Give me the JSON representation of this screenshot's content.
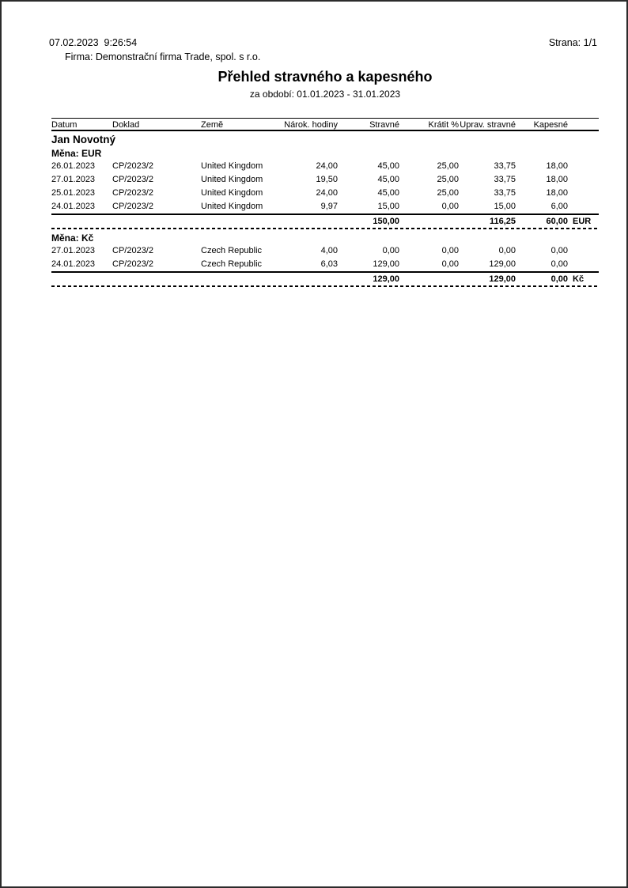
{
  "page": {
    "datetime": "07.02.2023  9:26:54",
    "page_label": "Strana: 1/1",
    "company": "Firma: Demonstrační firma Trade, spol. s r.o.",
    "title": "Přehled stravného a kapesného",
    "subtitle": "za období: 01.01.2023 - 31.01.2023"
  },
  "table": {
    "columns": [
      "Datum",
      "Doklad",
      "Země",
      "Nárok. hodiny",
      "Stravné",
      "Krátit %",
      "Uprav. stravné",
      "Kapesné"
    ],
    "employee": "Jan Novotný",
    "sections": [
      {
        "currency_label": "Měna: EUR",
        "rows": [
          {
            "datum": "26.01.2023",
            "doklad": "CP/2023/2",
            "zeme": "United Kingdom",
            "narok": "24,00",
            "stravne": "45,00",
            "kratit": "25,00",
            "uprav": "33,75",
            "kapesne": "18,00"
          },
          {
            "datum": "27.01.2023",
            "doklad": "CP/2023/2",
            "zeme": "United Kingdom",
            "narok": "19,50",
            "stravne": "45,00",
            "kratit": "25,00",
            "uprav": "33,75",
            "kapesne": "18,00"
          },
          {
            "datum": "25.01.2023",
            "doklad": "CP/2023/2",
            "zeme": "United Kingdom",
            "narok": "24,00",
            "stravne": "45,00",
            "kratit": "25,00",
            "uprav": "33,75",
            "kapesne": "18,00"
          },
          {
            "datum": "24.01.2023",
            "doklad": "CP/2023/2",
            "zeme": "United Kingdom",
            "narok": "9,97",
            "stravne": "15,00",
            "kratit": "0,00",
            "uprav": "15,00",
            "kapesne": "6,00"
          }
        ],
        "total": {
          "stravne": "150,00",
          "uprav": "116,25",
          "kapesne": "60,00",
          "currency": "EUR"
        }
      },
      {
        "currency_label": "Měna: Kč",
        "rows": [
          {
            "datum": "27.01.2023",
            "doklad": "CP/2023/2",
            "zeme": "Czech Republic",
            "narok": "4,00",
            "stravne": "0,00",
            "kratit": "0,00",
            "uprav": "0,00",
            "kapesne": "0,00"
          },
          {
            "datum": "24.01.2023",
            "doklad": "CP/2023/2",
            "zeme": "Czech Republic",
            "narok": "6,03",
            "stravne": "129,00",
            "kratit": "0,00",
            "uprav": "129,00",
            "kapesne": "0,00"
          }
        ],
        "total": {
          "stravne": "129,00",
          "uprav": "129,00",
          "kapesne": "0,00",
          "currency": "Kč"
        }
      }
    ]
  }
}
